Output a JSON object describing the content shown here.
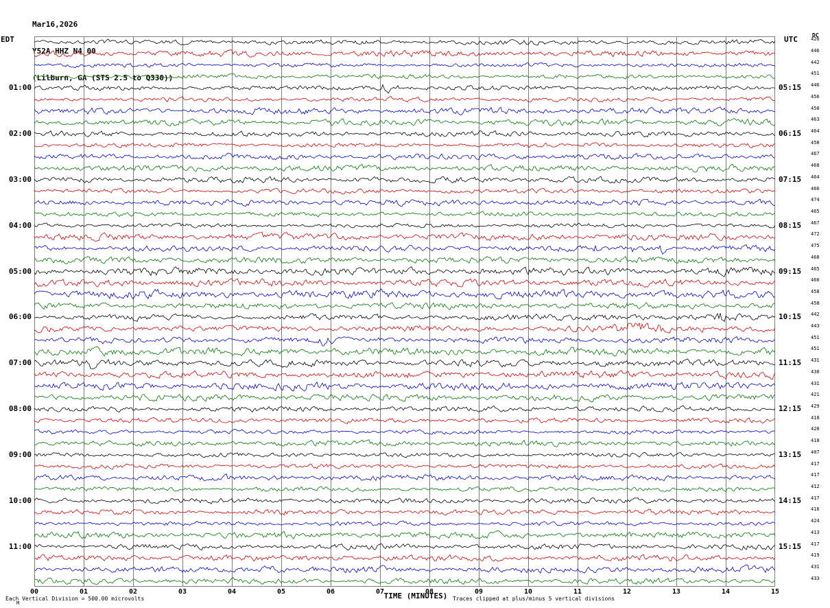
{
  "chart_data": {
    "type": "line",
    "subtype": "seismic-helicorder",
    "date": "Mar16,2026",
    "title": "Y52A HHZ N4 00",
    "station_line": "(Lilburn, GA (STS 2.5 to Q330))",
    "xlabel": "TIME (MINUTES)",
    "x_ticks": [
      "00",
      "01",
      "02",
      "03",
      "04",
      "05",
      "06",
      "07",
      "08",
      "09",
      "10",
      "11",
      "12",
      "13",
      "14",
      "15"
    ],
    "x_range_minutes": [
      0,
      15
    ],
    "rows": 48,
    "minutes_per_row": 15,
    "row_colors_cycle": [
      "#000000",
      "#d40000",
      "#0000cc",
      "#007700"
    ],
    "grid_color": "#7a7a7a",
    "left_axis": {
      "label": "EDT",
      "times": [
        "01:00",
        "02:00",
        "03:00",
        "04:00",
        "05:00",
        "06:00",
        "07:00",
        "08:00",
        "09:00",
        "10:00",
        "11:00"
      ]
    },
    "right_axis": {
      "label": "UTC",
      "times": [
        "05:15",
        "06:15",
        "07:15",
        "08:15",
        "09:15",
        "10:15",
        "11:15",
        "12:15",
        "13:15",
        "14:15",
        "15:15"
      ]
    },
    "dc_offsets_label": "DC",
    "dc_offsets": [
      426,
      446,
      442,
      451,
      446,
      456,
      458,
      463,
      464,
      458,
      467,
      468,
      464,
      466,
      474,
      465,
      467,
      472,
      475,
      468,
      465,
      460,
      458,
      458,
      442,
      443,
      451,
      451,
      431,
      438,
      431,
      421,
      429,
      418,
      420,
      418,
      407,
      417,
      417,
      412,
      417,
      416,
      424,
      413,
      417,
      419,
      431,
      433
    ],
    "scale_note": "Each Vertical Division =   500.00 microvolts",
    "clip_note": "Traces clipped at plus/minus 5 vertical divisions",
    "corner_mark": "M",
    "events": [
      {
        "row": 4,
        "minute": 7.12,
        "dur": 0.18,
        "gain": 5.0
      },
      {
        "row": 4,
        "minute": 7.38,
        "dur": 0.1,
        "gain": 3.0
      },
      {
        "row": 18,
        "minute": 11.35,
        "dur": 0.06,
        "gain": 4.0
      },
      {
        "row": 18,
        "minute": 12.15,
        "dur": 0.06,
        "gain": 5.0
      },
      {
        "row": 18,
        "minute": 12.72,
        "dur": 0.07,
        "gain": 5.5
      },
      {
        "row": 24,
        "minute": 11.8,
        "dur": 0.9,
        "gain": 1.8
      },
      {
        "row": 24,
        "minute": 13.9,
        "dur": 0.15,
        "gain": 2.4
      },
      {
        "row": 25,
        "minute": 12.3,
        "dur": 0.8,
        "gain": 2.6
      },
      {
        "row": 25,
        "minute": 13.5,
        "dur": 0.3,
        "gain": 2.2
      },
      {
        "row": 26,
        "minute": 5.85,
        "dur": 0.12,
        "gain": 3.0
      },
      {
        "row": 27,
        "minute": 1.5,
        "dur": 0.6,
        "gain": 2.2
      },
      {
        "row": 28,
        "minute": 1.15,
        "dur": 0.08,
        "gain": 6.0
      },
      {
        "row": 28,
        "minute": 11.5,
        "dur": 0.3,
        "gain": 1.8
      },
      {
        "row": 46,
        "minute": 4.7,
        "dur": 0.55,
        "gain": 2.0
      }
    ]
  }
}
